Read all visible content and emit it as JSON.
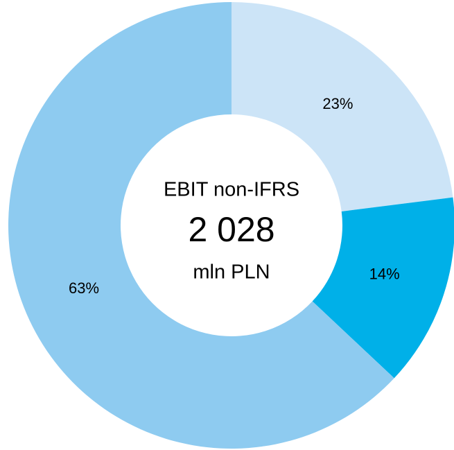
{
  "chart_data": {
    "type": "donut",
    "categories": [
      null,
      null,
      null
    ],
    "series": [
      {
        "values": [
          23,
          14,
          63
        ],
        "value_labels": [
          "23%",
          "14%",
          "63%"
        ],
        "colors": [
          "#cce4f7",
          "#00b0e8",
          "#8ecbf0"
        ]
      }
    ],
    "center_text": [
      "EBIT non-IFRS",
      {
        "value": 2028,
        "label": "2 028"
      },
      "mln PLN"
    ]
  }
}
